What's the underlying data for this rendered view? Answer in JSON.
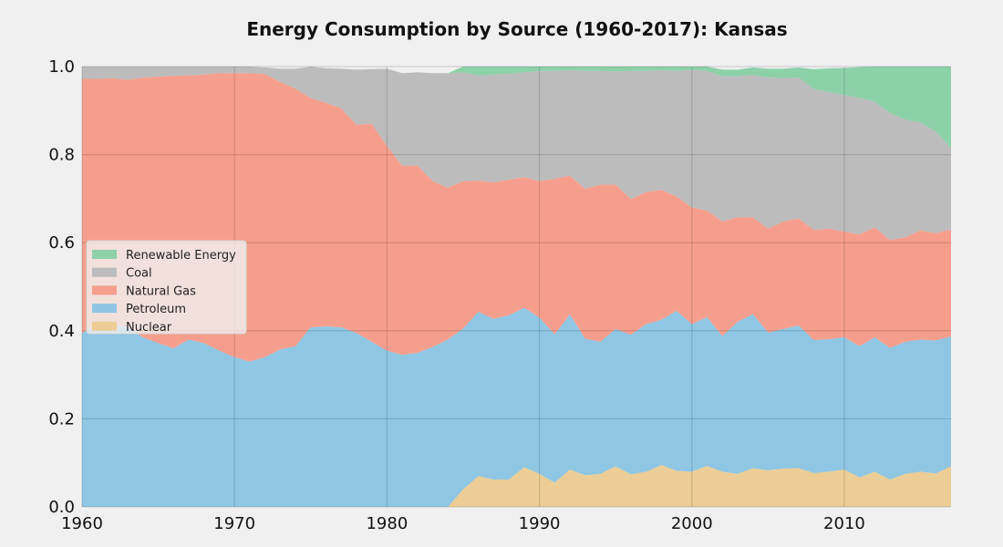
{
  "chart_data": {
    "type": "area",
    "stacked": true,
    "title": "Energy Consumption by Source (1960-2017): Kansas",
    "xlabel": "",
    "ylabel": "",
    "xlim": [
      1960,
      2017
    ],
    "ylim": [
      0,
      1.0
    ],
    "grid": true,
    "legend_position": "center-left",
    "legend_order": [
      "Renewable Energy",
      "Coal",
      "Natural Gas",
      "Petroleum",
      "Nuclear"
    ],
    "x_ticks": [
      1960,
      1970,
      1980,
      1990,
      2000,
      2010
    ],
    "y_ticks": [
      0.0,
      0.2,
      0.4,
      0.6,
      0.8,
      1.0
    ],
    "y_tick_labels": [
      "0.0",
      "0.2",
      "0.4",
      "0.6",
      "0.8",
      "1.0"
    ],
    "x": [
      1960,
      1961,
      1962,
      1963,
      1964,
      1965,
      1966,
      1967,
      1968,
      1969,
      1970,
      1971,
      1972,
      1973,
      1974,
      1975,
      1976,
      1977,
      1978,
      1979,
      1980,
      1981,
      1982,
      1983,
      1984,
      1985,
      1986,
      1987,
      1988,
      1989,
      1990,
      1991,
      1992,
      1993,
      1994,
      1995,
      1996,
      1997,
      1998,
      1999,
      2000,
      2001,
      2002,
      2003,
      2004,
      2005,
      2006,
      2007,
      2008,
      2009,
      2010,
      2011,
      2012,
      2013,
      2014,
      2015,
      2016,
      2017
    ],
    "series": [
      {
        "name": "Nuclear",
        "color": "#ebcd95",
        "values": [
          0,
          0,
          0,
          0,
          0,
          0,
          0,
          0,
          0,
          0,
          0,
          0,
          0,
          0,
          0,
          0,
          0,
          0,
          0,
          0,
          0,
          0,
          0,
          0,
          0,
          0.04,
          0.07,
          0.062,
          0.062,
          0.09,
          0.075,
          0.055,
          0.085,
          0.072,
          0.075,
          0.092,
          0.074,
          0.08,
          0.095,
          0.082,
          0.08,
          0.093,
          0.08,
          0.075,
          0.088,
          0.083,
          0.087,
          0.088,
          0.077,
          0.08,
          0.085,
          0.067,
          0.08,
          0.062,
          0.075,
          0.08,
          0.076,
          0.092
        ]
      },
      {
        "name": "Petroleum",
        "color": "#8fc6e3",
        "values": [
          0.395,
          0.415,
          0.413,
          0.408,
          0.385,
          0.372,
          0.36,
          0.38,
          0.372,
          0.355,
          0.34,
          0.33,
          0.34,
          0.358,
          0.365,
          0.408,
          0.41,
          0.408,
          0.395,
          0.375,
          0.355,
          0.345,
          0.35,
          0.363,
          0.38,
          0.365,
          0.373,
          0.365,
          0.373,
          0.362,
          0.355,
          0.337,
          0.352,
          0.31,
          0.3,
          0.312,
          0.317,
          0.335,
          0.33,
          0.363,
          0.335,
          0.338,
          0.308,
          0.345,
          0.35,
          0.313,
          0.317,
          0.324,
          0.302,
          0.301,
          0.3,
          0.298,
          0.305,
          0.299,
          0.3,
          0.3,
          0.302,
          0.295
        ]
      },
      {
        "name": "Natural Gas",
        "color": "#f69e8d",
        "values": [
          0.577,
          0.557,
          0.56,
          0.562,
          0.59,
          0.605,
          0.619,
          0.6,
          0.61,
          0.63,
          0.645,
          0.655,
          0.643,
          0.607,
          0.585,
          0.52,
          0.508,
          0.497,
          0.473,
          0.495,
          0.465,
          0.43,
          0.425,
          0.377,
          0.345,
          0.335,
          0.298,
          0.31,
          0.308,
          0.297,
          0.31,
          0.353,
          0.315,
          0.34,
          0.357,
          0.328,
          0.308,
          0.3,
          0.295,
          0.26,
          0.265,
          0.242,
          0.26,
          0.238,
          0.22,
          0.236,
          0.244,
          0.243,
          0.25,
          0.251,
          0.24,
          0.254,
          0.25,
          0.245,
          0.237,
          0.248,
          0.244,
          0.243
        ]
      },
      {
        "name": "Coal",
        "color": "#bcbcbc",
        "values": [
          0.028,
          0.028,
          0.027,
          0.03,
          0.025,
          0.023,
          0.021,
          0.02,
          0.018,
          0.015,
          0.015,
          0.015,
          0.015,
          0.03,
          0.045,
          0.072,
          0.078,
          0.09,
          0.125,
          0.124,
          0.175,
          0.21,
          0.212,
          0.245,
          0.26,
          0.247,
          0.239,
          0.245,
          0.241,
          0.238,
          0.25,
          0.245,
          0.24,
          0.268,
          0.258,
          0.257,
          0.291,
          0.275,
          0.272,
          0.285,
          0.313,
          0.317,
          0.33,
          0.32,
          0.323,
          0.343,
          0.326,
          0.32,
          0.32,
          0.31,
          0.31,
          0.31,
          0.285,
          0.288,
          0.268,
          0.245,
          0.23,
          0.185
        ]
      },
      {
        "name": "Renewable Energy",
        "color": "#8dd1a9",
        "values": [
          0,
          0,
          0,
          0,
          0,
          0,
          0,
          0,
          0,
          0,
          0,
          0,
          0,
          0,
          0,
          0,
          0,
          0,
          0,
          0,
          0,
          0,
          0,
          0,
          0,
          0.013,
          0.02,
          0.018,
          0.016,
          0.013,
          0.01,
          0.01,
          0.008,
          0.01,
          0.01,
          0.011,
          0.01,
          0.01,
          0.008,
          0.01,
          0.007,
          0.01,
          0.015,
          0.015,
          0.017,
          0.02,
          0.021,
          0.023,
          0.045,
          0.054,
          0.062,
          0.07,
          0.08,
          0.106,
          0.12,
          0.127,
          0.148,
          0.185
        ]
      }
    ]
  }
}
